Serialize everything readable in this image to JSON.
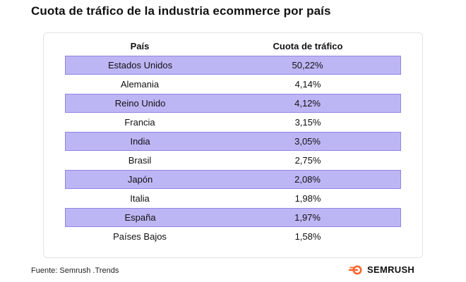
{
  "title": "Cuota de tráfico de la industria ecommerce por país",
  "source": "Fuente: Semrush .Trends",
  "brand": "SEMRUSH",
  "colors": {
    "row_shaded": "#bdb6f4",
    "row_border": "#8f86e6",
    "brand_orange": "#ff642d"
  },
  "chart_data": {
    "type": "table",
    "columns": [
      "País",
      "Cuota de tráfico"
    ],
    "rows": [
      {
        "country": "Estados Unidos",
        "share": "50,22%"
      },
      {
        "country": "Alemania",
        "share": "4,14%"
      },
      {
        "country": "Reino Unido",
        "share": "4,12%"
      },
      {
        "country": "Francia",
        "share": "3,15%"
      },
      {
        "country": "India",
        "share": "3,05%"
      },
      {
        "country": "Brasil",
        "share": "2,75%"
      },
      {
        "country": "Japón",
        "share": "2,08%"
      },
      {
        "country": "Italia",
        "share": "1,98%"
      },
      {
        "country": "España",
        "share": "1,97%"
      },
      {
        "country": "Países Bajos",
        "share": "1,58%"
      }
    ]
  }
}
